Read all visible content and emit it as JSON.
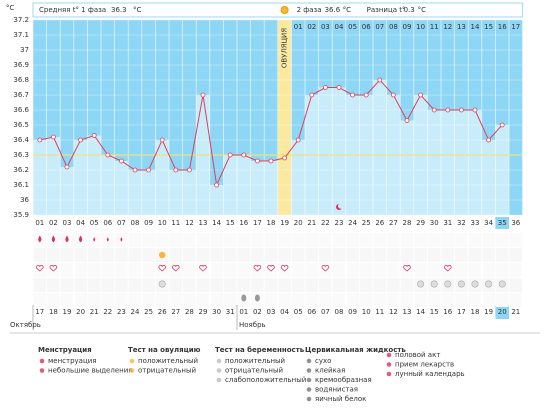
{
  "chart_data": {
    "type": "line",
    "y_axis_label": "°C",
    "header": {
      "phase1_label": "Средняя t° 1 фаза",
      "phase1_avg": 36.3,
      "phase2_label": "2 фаза",
      "phase2_avg": 36.6,
      "diff_label": "Разница t°",
      "diff": 0.3,
      "unit": "°C"
    },
    "categories": [
      "01",
      "02",
      "03",
      "04",
      "05",
      "06",
      "07",
      "08",
      "09",
      "10",
      "11",
      "12",
      "13",
      "14",
      "15",
      "16",
      "17",
      "18",
      "19",
      "20",
      "21",
      "22",
      "23",
      "24",
      "25",
      "26",
      "27",
      "28",
      "29",
      "30",
      "31",
      "32",
      "33",
      "34",
      "35",
      "36"
    ],
    "values": [
      36.4,
      36.42,
      36.22,
      36.4,
      36.43,
      36.3,
      36.26,
      36.2,
      36.2,
      36.4,
      36.2,
      36.2,
      36.7,
      36.1,
      36.3,
      36.3,
      36.26,
      36.26,
      36.28,
      36.4,
      36.7,
      36.75,
      36.75,
      36.7,
      36.7,
      36.8,
      36.7,
      36.53,
      36.7,
      36.6,
      36.6,
      36.6,
      36.6,
      36.4,
      36.5,
      null
    ],
    "color": "#e0405a",
    "ylim": [
      35.9,
      37.2
    ],
    "yticks": [
      35.9,
      36,
      36.1,
      36.2,
      36.3,
      36.4,
      36.5,
      36.6,
      36.7,
      36.8,
      36.9,
      37,
      37.1,
      37.2
    ],
    "coverline": 36.3,
    "ovulation_day": "19",
    "ovulation_label": "ОВУЛЯЦИЯ",
    "phase2_days": [
      "01",
      "02",
      "03",
      "04",
      "05",
      "06",
      "07",
      "08",
      "09",
      "10",
      "11",
      "12",
      "13",
      "14",
      "15",
      "16",
      "17"
    ],
    "today": "35",
    "dates": [
      {
        "label": "17"
      },
      {
        "label": "18"
      },
      {
        "label": "19"
      },
      {
        "label": "20"
      },
      {
        "label": "21"
      },
      {
        "label": "22",
        "weekend": true
      },
      {
        "label": "23",
        "weekend": true
      },
      {
        "label": "24"
      },
      {
        "label": "25"
      },
      {
        "label": "26"
      },
      {
        "label": "27"
      },
      {
        "label": "28"
      },
      {
        "label": "29",
        "weekend": true
      },
      {
        "label": "30",
        "weekend": true
      },
      {
        "label": "31"
      },
      {
        "label": "01"
      },
      {
        "label": "02"
      },
      {
        "label": "03"
      },
      {
        "label": "04"
      },
      {
        "label": "05",
        "weekend": true
      },
      {
        "label": "06",
        "weekend": true
      },
      {
        "label": "07"
      },
      {
        "label": "08"
      },
      {
        "label": "09"
      },
      {
        "label": "10"
      },
      {
        "label": "11"
      },
      {
        "label": "12",
        "weekend": true
      },
      {
        "label": "13",
        "weekend": true
      },
      {
        "label": "14"
      },
      {
        "label": "15"
      },
      {
        "label": "16"
      },
      {
        "label": "17"
      },
      {
        "label": "18"
      },
      {
        "label": "19",
        "weekend": true
      },
      {
        "label": "20",
        "weekend": true
      },
      {
        "label": "21"
      }
    ],
    "months": [
      {
        "label": "Октябрь",
        "day": "01"
      },
      {
        "label": "Ноябрь",
        "day": "16"
      }
    ],
    "events": {
      "menstruation": [
        "01",
        "02",
        "03",
        "04"
      ],
      "spotting": [
        "05",
        "06",
        "07"
      ],
      "intercourse": [
        "01",
        "02",
        "10",
        "11",
        "13",
        "17",
        "18",
        "19",
        "22",
        "28",
        "31"
      ],
      "ovulation_positive": [
        "10"
      ],
      "medication": [
        "10",
        "29",
        "30",
        "31",
        "32",
        "33",
        "34",
        "35"
      ],
      "egg_white": [
        "16",
        "17"
      ],
      "moon": [
        "23"
      ]
    },
    "legend": [
      {
        "title": "Менструация",
        "items": [
          "менструация",
          "небольшие выделения"
        ]
      },
      {
        "title": "Тест на овуляцию",
        "items": [
          "положительный",
          "отрицательный"
        ]
      },
      {
        "title": "Тест на беременность",
        "items": [
          "положительный",
          "отрицательный",
          "слабоположительный"
        ]
      },
      {
        "title": "Цервикальная жидкость",
        "items": [
          "сухо",
          "клейкая",
          "кремообразная",
          "водянистая",
          "яичный белок"
        ]
      },
      {
        "items": [
          "половой акт",
          "прием лекарств",
          "лунный календарь"
        ]
      }
    ]
  }
}
